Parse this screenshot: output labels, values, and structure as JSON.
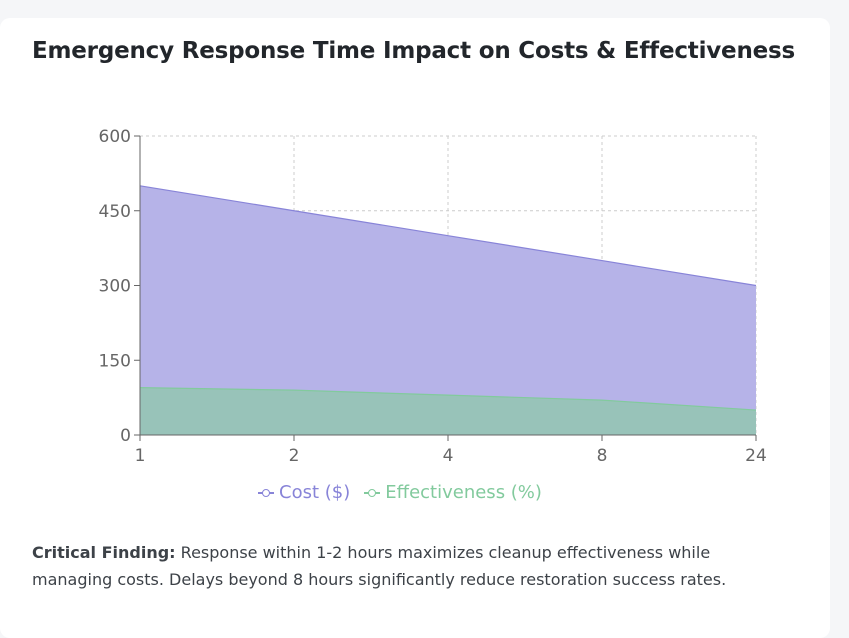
{
  "card": {
    "title": "Emergency Response Time Impact on Costs & Effectiveness",
    "finding_label": "Critical Finding:",
    "finding_text": " Response within 1-2 hours maximizes cleanup effectiveness while managing costs. Delays beyond 8 hours significantly reduce restoration success rates."
  },
  "chart_data": {
    "type": "area",
    "title": "Emergency Response Time Impact on Costs & Effectiveness",
    "categories": [
      "1",
      "2",
      "4",
      "8",
      "24"
    ],
    "series": [
      {
        "name": "Cost ($)",
        "values": [
          500,
          450,
          400,
          350,
          300
        ],
        "color": "#8884d8",
        "fill": "#b6b3e8"
      },
      {
        "name": "Effectiveness (%)",
        "values": [
          95,
          90,
          80,
          70,
          50
        ],
        "color": "#82ca9d",
        "fill": "#98c3b9"
      }
    ],
    "y_ticks": [
      "0",
      "150",
      "300",
      "450",
      "600"
    ],
    "ylim": [
      0,
      600
    ],
    "xlabel": "",
    "ylabel": "",
    "grid": true,
    "legend_position": "bottom"
  }
}
